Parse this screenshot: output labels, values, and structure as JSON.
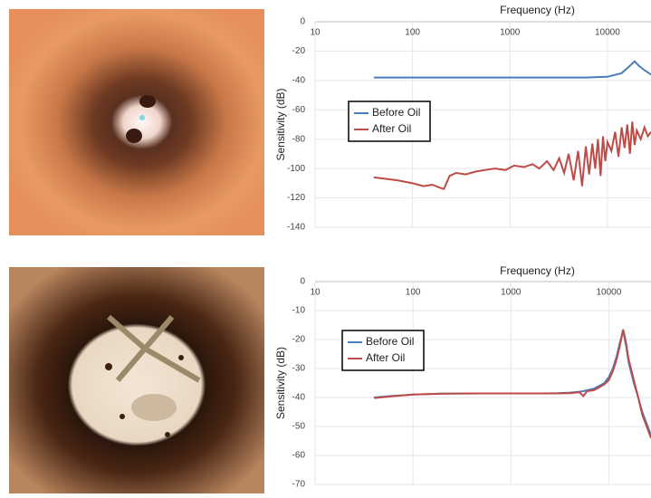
{
  "chart_data": [
    {
      "type": "line",
      "title": "Frequency (Hz)",
      "y_label": "Sensitivity (dB)",
      "x_scale": "log",
      "xlim": [
        10,
        28000
      ],
      "xticks": [
        10,
        100,
        1000,
        10000
      ],
      "ylim": [
        -140,
        0
      ],
      "yticks": [
        0,
        -20,
        -40,
        -60,
        -80,
        -100,
        -120,
        -140
      ],
      "grid": true,
      "series": [
        {
          "name": "Before Oil",
          "color": "#4a7ebb",
          "x": [
            40,
            100,
            300,
            1000,
            3000,
            6000,
            10000,
            14000,
            17000,
            19000,
            21000,
            24000,
            28000
          ],
          "values": [
            -38,
            -38,
            -38,
            -38,
            -38,
            -38,
            -37.5,
            -35,
            -30,
            -27,
            -30,
            -33,
            -36
          ]
        },
        {
          "name": "After Oil",
          "color": "#be4b48",
          "x": [
            40,
            70,
            100,
            130,
            160,
            190,
            210,
            240,
            280,
            350,
            450,
            550,
            700,
            900,
            1100,
            1400,
            1700,
            2000,
            2400,
            2800,
            3200,
            3600,
            4000,
            4500,
            5000,
            5500,
            6000,
            6500,
            7000,
            7500,
            8000,
            8500,
            9000,
            9500,
            10000,
            11000,
            12000,
            13000,
            14000,
            15000,
            16000,
            17000,
            18000,
            19000,
            20000,
            22000,
            24000,
            26000,
            28000
          ],
          "values": [
            -106,
            -108,
            -110,
            -112,
            -111,
            -113,
            -114,
            -105,
            -103,
            -104,
            -102,
            -101,
            -100,
            -101,
            -98,
            -99,
            -97,
            -100,
            -95,
            -101,
            -93,
            -103,
            -90,
            -108,
            -88,
            -112,
            -85,
            -104,
            -83,
            -100,
            -80,
            -105,
            -78,
            -95,
            -82,
            -88,
            -75,
            -92,
            -72,
            -86,
            -70,
            -90,
            -68,
            -84,
            -74,
            -80,
            -72,
            -78,
            -75
          ]
        }
      ]
    },
    {
      "type": "line",
      "title": "Frequency (Hz)",
      "y_label": "Sensitivity (dB)",
      "x_scale": "log",
      "xlim": [
        10,
        27000
      ],
      "xticks": [
        10,
        100,
        1000,
        10000
      ],
      "ylim": [
        -70,
        0
      ],
      "yticks": [
        0,
        -10,
        -20,
        -30,
        -40,
        -50,
        -60,
        -70
      ],
      "grid": true,
      "series": [
        {
          "name": "Before Oil",
          "color": "#4a7ebb",
          "x": [
            40,
            60,
            100,
            200,
            500,
            1000,
            2000,
            3000,
            4000,
            5000,
            5500,
            6000,
            7000,
            8000,
            9000,
            10000,
            11000,
            12000,
            13000,
            14000,
            15000,
            16000,
            18000,
            20000,
            22000,
            25000,
            27000
          ],
          "values": [
            -40,
            -39.5,
            -39,
            -38.7,
            -38.6,
            -38.6,
            -38.6,
            -38.5,
            -38.3,
            -38,
            -37.8,
            -37.5,
            -37,
            -36,
            -35,
            -33,
            -30,
            -26,
            -21,
            -17,
            -22,
            -28,
            -35,
            -40,
            -45,
            -50,
            -53
          ]
        },
        {
          "name": "After Oil",
          "color": "#be4b48",
          "x": [
            40,
            60,
            100,
            200,
            500,
            1000,
            2000,
            3000,
            4000,
            5000,
            5500,
            6000,
            7000,
            8000,
            9000,
            10000,
            11000,
            12000,
            13000,
            14000,
            15000,
            16000,
            18000,
            20000,
            22000,
            25000,
            27000
          ],
          "values": [
            -40.2,
            -39.6,
            -39,
            -38.7,
            -38.6,
            -38.6,
            -38.6,
            -38.6,
            -38.5,
            -38.2,
            -39.5,
            -37.8,
            -37.5,
            -36.5,
            -35.5,
            -34,
            -31,
            -27,
            -22,
            -16.5,
            -21,
            -27,
            -34,
            -40,
            -46,
            -51,
            -54
          ]
        }
      ]
    }
  ]
}
